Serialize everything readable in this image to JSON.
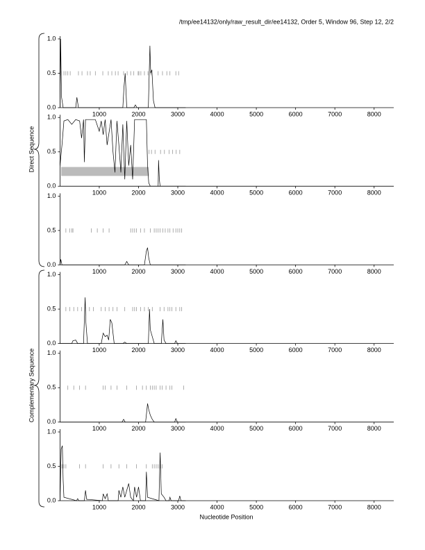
{
  "header": "/tmp/ee14132/only/raw_result_dir/ee14132, Order 5, Window 96, Step 12, 2/2",
  "group_labels": [
    "Direct Sequence",
    "Complementary Sequence"
  ],
  "x_label": "Nucleotide Position",
  "chart_data": [
    {
      "type": "line",
      "xlim": [
        0,
        8500
      ],
      "ylim": [
        0,
        1
      ],
      "xticks": [
        1000,
        2000,
        3000,
        4000,
        5000,
        6000,
        7000,
        8000
      ],
      "yticks": [
        {
          "value": 0,
          "label": "0.0"
        },
        {
          "value": 0.5,
          "label": "0.5"
        },
        {
          "value": 1,
          "label": "1.0"
        }
      ],
      "x": [
        0,
        15,
        40,
        80,
        400,
        430,
        470,
        1600,
        1630,
        1660,
        1700,
        1880,
        1920,
        1960,
        2250,
        2290,
        2310,
        2340,
        2380,
        2420,
        3200
      ],
      "series": [
        {
          "color": "#000000",
          "values": [
            0,
            1.0,
            0.15,
            0,
            0,
            0.15,
            0,
            0,
            0.3,
            0.5,
            0,
            0,
            0.04,
            0,
            0,
            0.9,
            0.5,
            0.55,
            0.1,
            0,
            0
          ]
        }
      ],
      "markers": {
        "y": 0.5,
        "color": "#888888",
        "x": [
          30,
          100,
          150,
          200,
          260,
          470,
          560,
          700,
          770,
          900,
          1090,
          1230,
          1320,
          1410,
          1480,
          1620,
          1710,
          1800,
          1880,
          1990,
          2010,
          2060,
          2150,
          2240,
          2320,
          2500,
          2610,
          2720,
          2800,
          2950,
          3020
        ]
      }
    },
    {
      "type": "line",
      "xlim": [
        0,
        8500
      ],
      "ylim": [
        0,
        1
      ],
      "xticks": [
        1000,
        2000,
        3000,
        4000,
        5000,
        6000,
        7000,
        8000
      ],
      "yticks": [
        {
          "value": 0,
          "label": "0.0"
        },
        {
          "value": 0.5,
          "label": "0.5"
        },
        {
          "value": 1,
          "label": "1.0"
        }
      ],
      "x": [
        0,
        50,
        100,
        200,
        300,
        400,
        500,
        550,
        600,
        620,
        650,
        700,
        900,
        1000,
        1050,
        1100,
        1150,
        1200,
        1300,
        1350,
        1400,
        1450,
        1500,
        1550,
        1600,
        1650,
        1700,
        1750,
        1800,
        1850,
        1900,
        1950,
        2000,
        2100,
        2200,
        2230,
        2260,
        2300,
        2500,
        2510,
        2530,
        2550,
        3200
      ],
      "series": [
        {
          "color": "#000000",
          "values": [
            0.3,
            0.6,
            0.95,
            0.97,
            0.9,
            0.97,
            0.95,
            0.7,
            0.97,
            0.35,
            0.97,
            0.97,
            0.97,
            0.8,
            0.95,
            0.75,
            0.97,
            0.6,
            0.97,
            0.5,
            0.2,
            0.95,
            0.6,
            0.2,
            0.9,
            0.1,
            0.95,
            0.3,
            0.6,
            0.1,
            0.97,
            0.97,
            0.97,
            0.97,
            0.97,
            0.3,
            0.05,
            0,
            0,
            0.38,
            0.1,
            0,
            0
          ]
        }
      ],
      "regions": [
        {
          "x": [
            30,
            2260
          ],
          "y": [
            0.15,
            0.28
          ],
          "color": "#bbbbbb"
        }
      ],
      "markers": {
        "y": 0.5,
        "color": "#888888",
        "x": [
          2270,
          2330,
          2420,
          2560,
          2660,
          2780,
          2870,
          2960,
          3050
        ]
      }
    },
    {
      "type": "line",
      "xlim": [
        0,
        8500
      ],
      "ylim": [
        0,
        1
      ],
      "xticks": [
        1000,
        2000,
        3000,
        4000,
        5000,
        6000,
        7000,
        8000
      ],
      "yticks": [
        {
          "value": 0,
          "label": "0.0"
        },
        {
          "value": 0.5,
          "label": "0.5"
        },
        {
          "value": 1,
          "label": "1.0"
        }
      ],
      "x": [
        0,
        20,
        50,
        1650,
        1700,
        1750,
        2150,
        2200,
        2230,
        2260,
        2300,
        3200
      ],
      "series": [
        {
          "color": "#000000",
          "values": [
            0,
            0.08,
            0,
            0,
            0.05,
            0,
            0,
            0.2,
            0.25,
            0.1,
            0,
            0
          ]
        }
      ],
      "markers": {
        "y": 0.5,
        "color": "#888888",
        "x": [
          150,
          250,
          300,
          330,
          800,
          950,
          1100,
          1250,
          1800,
          1850,
          1900,
          1950,
          2050,
          2150,
          2300,
          2400,
          2450,
          2500,
          2550,
          2620,
          2680,
          2750,
          2800,
          2880,
          2950,
          3000,
          3050,
          3100
        ]
      }
    },
    {
      "type": "line",
      "xlim": [
        0,
        8500
      ],
      "ylim": [
        0,
        1
      ],
      "xticks": [
        1000,
        2000,
        3000,
        4000,
        5000,
        6000,
        7000,
        8000
      ],
      "yticks": [
        {
          "value": 0,
          "label": "0.0"
        },
        {
          "value": 0.5,
          "label": "0.5"
        },
        {
          "value": 1,
          "label": "1.0"
        }
      ],
      "x": [
        0,
        300,
        330,
        400,
        450,
        600,
        640,
        660,
        700,
        1050,
        1100,
        1150,
        1200,
        1240,
        1280,
        1320,
        1380,
        1600,
        1650,
        1700,
        2250,
        2280,
        2300,
        2350,
        2400,
        2580,
        2620,
        2650,
        2700,
        2920,
        2950,
        2990,
        3200
      ],
      "series": [
        {
          "color": "#000000",
          "values": [
            0,
            0,
            0.04,
            0.05,
            0,
            0,
            0.67,
            0.3,
            0,
            0,
            0.15,
            0.1,
            0.12,
            0.05,
            0.35,
            0.3,
            0,
            0,
            0.02,
            0,
            0,
            0.5,
            0.2,
            0.1,
            0,
            0,
            0.35,
            0.05,
            0,
            0,
            0.04,
            0,
            0
          ]
        }
      ],
      "markers": {
        "y": 0.5,
        "color": "#888888",
        "x": [
          150,
          250,
          350,
          450,
          550,
          650,
          750,
          850,
          1050,
          1150,
          1250,
          1350,
          1450,
          1650,
          1850,
          1900,
          1950,
          2050,
          2150,
          2250,
          2350,
          2550,
          2650,
          2750,
          2800,
          2850,
          2950,
          3050,
          3100
        ]
      }
    },
    {
      "type": "line",
      "xlim": [
        0,
        8500
      ],
      "ylim": [
        0,
        1
      ],
      "xticks": [
        1000,
        2000,
        3000,
        4000,
        5000,
        6000,
        7000,
        8000
      ],
      "yticks": [
        {
          "value": 0,
          "label": "0.0"
        },
        {
          "value": 0.5,
          "label": "0.5"
        },
        {
          "value": 1,
          "label": "1.0"
        }
      ],
      "x": [
        0,
        1580,
        1620,
        1660,
        2180,
        2230,
        2260,
        2300,
        2350,
        2400,
        2920,
        2950,
        2990,
        3200
      ],
      "series": [
        {
          "color": "#000000",
          "values": [
            0,
            0,
            0.04,
            0,
            0,
            0.27,
            0.18,
            0.1,
            0.04,
            0,
            0,
            0.05,
            0,
            0
          ]
        }
      ],
      "markers": {
        "y": 0.5,
        "color": "#888888",
        "x": [
          200,
          350,
          500,
          650,
          1100,
          1150,
          1300,
          1450,
          1700,
          1950,
          2100,
          2200,
          2300,
          2350,
          2400,
          2450,
          2550,
          2600,
          2700,
          2800,
          2850,
          3150
        ]
      }
    },
    {
      "type": "line",
      "xlim": [
        0,
        8500
      ],
      "ylim": [
        0,
        1
      ],
      "xticks": [
        1000,
        2000,
        3000,
        4000,
        5000,
        6000,
        7000,
        8000
      ],
      "yticks": [
        {
          "value": 0,
          "label": "0.0"
        },
        {
          "value": 0.5,
          "label": "0.5"
        },
        {
          "value": 1,
          "label": "1.0"
        }
      ],
      "x": [
        0,
        30,
        60,
        80,
        100,
        420,
        450,
        480,
        620,
        650,
        680,
        1080,
        1100,
        1150,
        1200,
        1230,
        1480,
        1500,
        1550,
        1600,
        1650,
        1700,
        1750,
        1800,
        1870,
        1900,
        1950,
        2000,
        2050,
        2180,
        2200,
        2230,
        2520,
        2550,
        2580,
        2650,
        2700,
        2780,
        2800,
        2830,
        3020,
        3050,
        3080,
        3200
      ],
      "series": [
        {
          "color": "#000000",
          "values": [
            0,
            0.75,
            0.8,
            0.3,
            0.05,
            0,
            0.03,
            0,
            0,
            0.15,
            0.02,
            0,
            0.1,
            0.03,
            0.1,
            0,
            0,
            0.15,
            0.05,
            0.2,
            0.05,
            0.15,
            0.25,
            0.05,
            0,
            0.2,
            0.05,
            0.2,
            0,
            0,
            0.42,
            0.05,
            0,
            0.7,
            0.1,
            0.05,
            0,
            0,
            0.05,
            0,
            0,
            0.07,
            0,
            0
          ]
        }
      ],
      "markers": {
        "y": 0.5,
        "color": "#888888",
        "x": [
          50,
          100,
          150,
          500,
          650,
          1100,
          1300,
          1500,
          1700,
          1950,
          2200,
          2350,
          2400,
          2450,
          2500,
          2550,
          2600
        ]
      }
    }
  ]
}
